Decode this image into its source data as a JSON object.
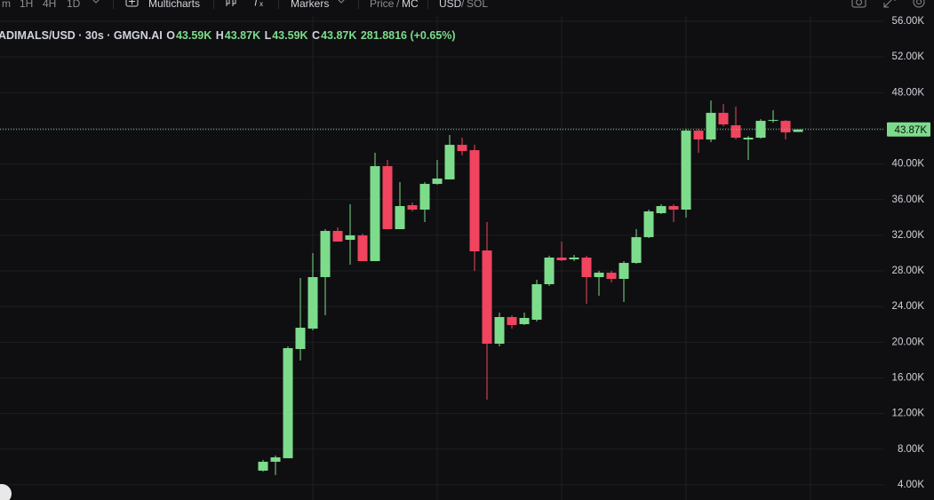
{
  "toolbar": {
    "intervals": [
      "m",
      "1H",
      "4H",
      "1D"
    ],
    "multicharts": "Multicharts",
    "markers": "Markers",
    "price": "Price",
    "price_sep": "/",
    "mc": "MC",
    "usd": "USD",
    "usd_sep": "/",
    "sol": "SOL"
  },
  "legend": {
    "symbol": "ADIMALS/USD · 30s · GMGN.AI",
    "o": "O",
    "open": "43.59K",
    "h": "H",
    "high": "43.87K",
    "l": "L",
    "low": "43.59K",
    "c": "C",
    "close": "43.87K",
    "change": "281.8816 (+0.65%)"
  },
  "chart_data": {
    "type": "candlestick",
    "up_color": "#7ddc8c",
    "down_color": "#f0445f",
    "grid": true,
    "open": [
      5594,
      6590,
      6988,
      19238,
      21529,
      27306,
      32486,
      31490,
      31988,
      29100,
      39756,
      32685,
      35374,
      34876,
      37764,
      38262,
      42147,
      41549,
      30294,
      19836,
      22824,
      22028,
      22526,
      26510,
      29498,
      29299,
      29498,
      27306,
      27804,
      27107,
      28900,
      31788,
      34478,
      35275,
      34876,
      43740,
      42745,
      45733,
      44338,
      42745,
      42944,
      44836,
      44836,
      43590
    ],
    "high": [
      6790,
      7290,
      19538,
      27207,
      29996,
      32685,
      32884,
      35474,
      32187,
      41251,
      40455,
      37964,
      35673,
      37964,
      40455,
      43243,
      42944,
      42147,
      33482,
      23323,
      23024,
      23323,
      27007,
      29697,
      31290,
      29797,
      29697,
      28004,
      28004,
      29100,
      32685,
      34876,
      35474,
      35474,
      43940,
      43940,
      47127,
      46728,
      46430,
      43143,
      45036,
      46032,
      44936,
      43870
    ],
    "low": [
      5494,
      5096,
      6988,
      17944,
      21330,
      23024,
      31290,
      28701,
      29100,
      29100,
      32685,
      32685,
      34677,
      33482,
      37665,
      38262,
      40953,
      28004,
      13562,
      19538,
      21529,
      21928,
      22326,
      26311,
      29100,
      29100,
      24318,
      25215,
      26709,
      24518,
      28801,
      31689,
      34378,
      33482,
      33980,
      41251,
      42446,
      44239,
      42745,
      40455,
      42844,
      44637,
      42745,
      43590
    ],
    "close": [
      6590,
      7088,
      19338,
      21629,
      27306,
      32486,
      31290,
      31988,
      29100,
      39756,
      32685,
      35275,
      34876,
      37764,
      38362,
      42147,
      41449,
      30195,
      19836,
      22824,
      21928,
      22725,
      26510,
      29498,
      29199,
      29498,
      27306,
      27804,
      27107,
      28900,
      31788,
      34677,
      35275,
      34876,
      43740,
      42745,
      45733,
      44438,
      42944,
      42944,
      44836,
      44936,
      43542,
      43870
    ],
    "ylim": [
      2300,
      56600
    ],
    "yticks": [
      {
        "value": 4000,
        "label": "4.00K"
      },
      {
        "value": 8000,
        "label": "8.00K"
      },
      {
        "value": 12000,
        "label": "12.00K"
      },
      {
        "value": 16000,
        "label": "16.00K"
      },
      {
        "value": 20000,
        "label": "20.00K"
      },
      {
        "value": 24000,
        "label": "24.00K"
      },
      {
        "value": 28000,
        "label": "28.00K"
      },
      {
        "value": 32000,
        "label": "32.00K"
      },
      {
        "value": 36000,
        "label": "36.00K"
      },
      {
        "value": 40000,
        "label": "40.00K"
      },
      {
        "value": 44000,
        "label": "44.00K"
      },
      {
        "value": 48000,
        "label": "48.00K"
      },
      {
        "value": 52000,
        "label": "52.00K"
      },
      {
        "value": 56000,
        "label": "56.00K"
      }
    ],
    "last_price": {
      "value": 43870,
      "label": "43.87K"
    }
  }
}
